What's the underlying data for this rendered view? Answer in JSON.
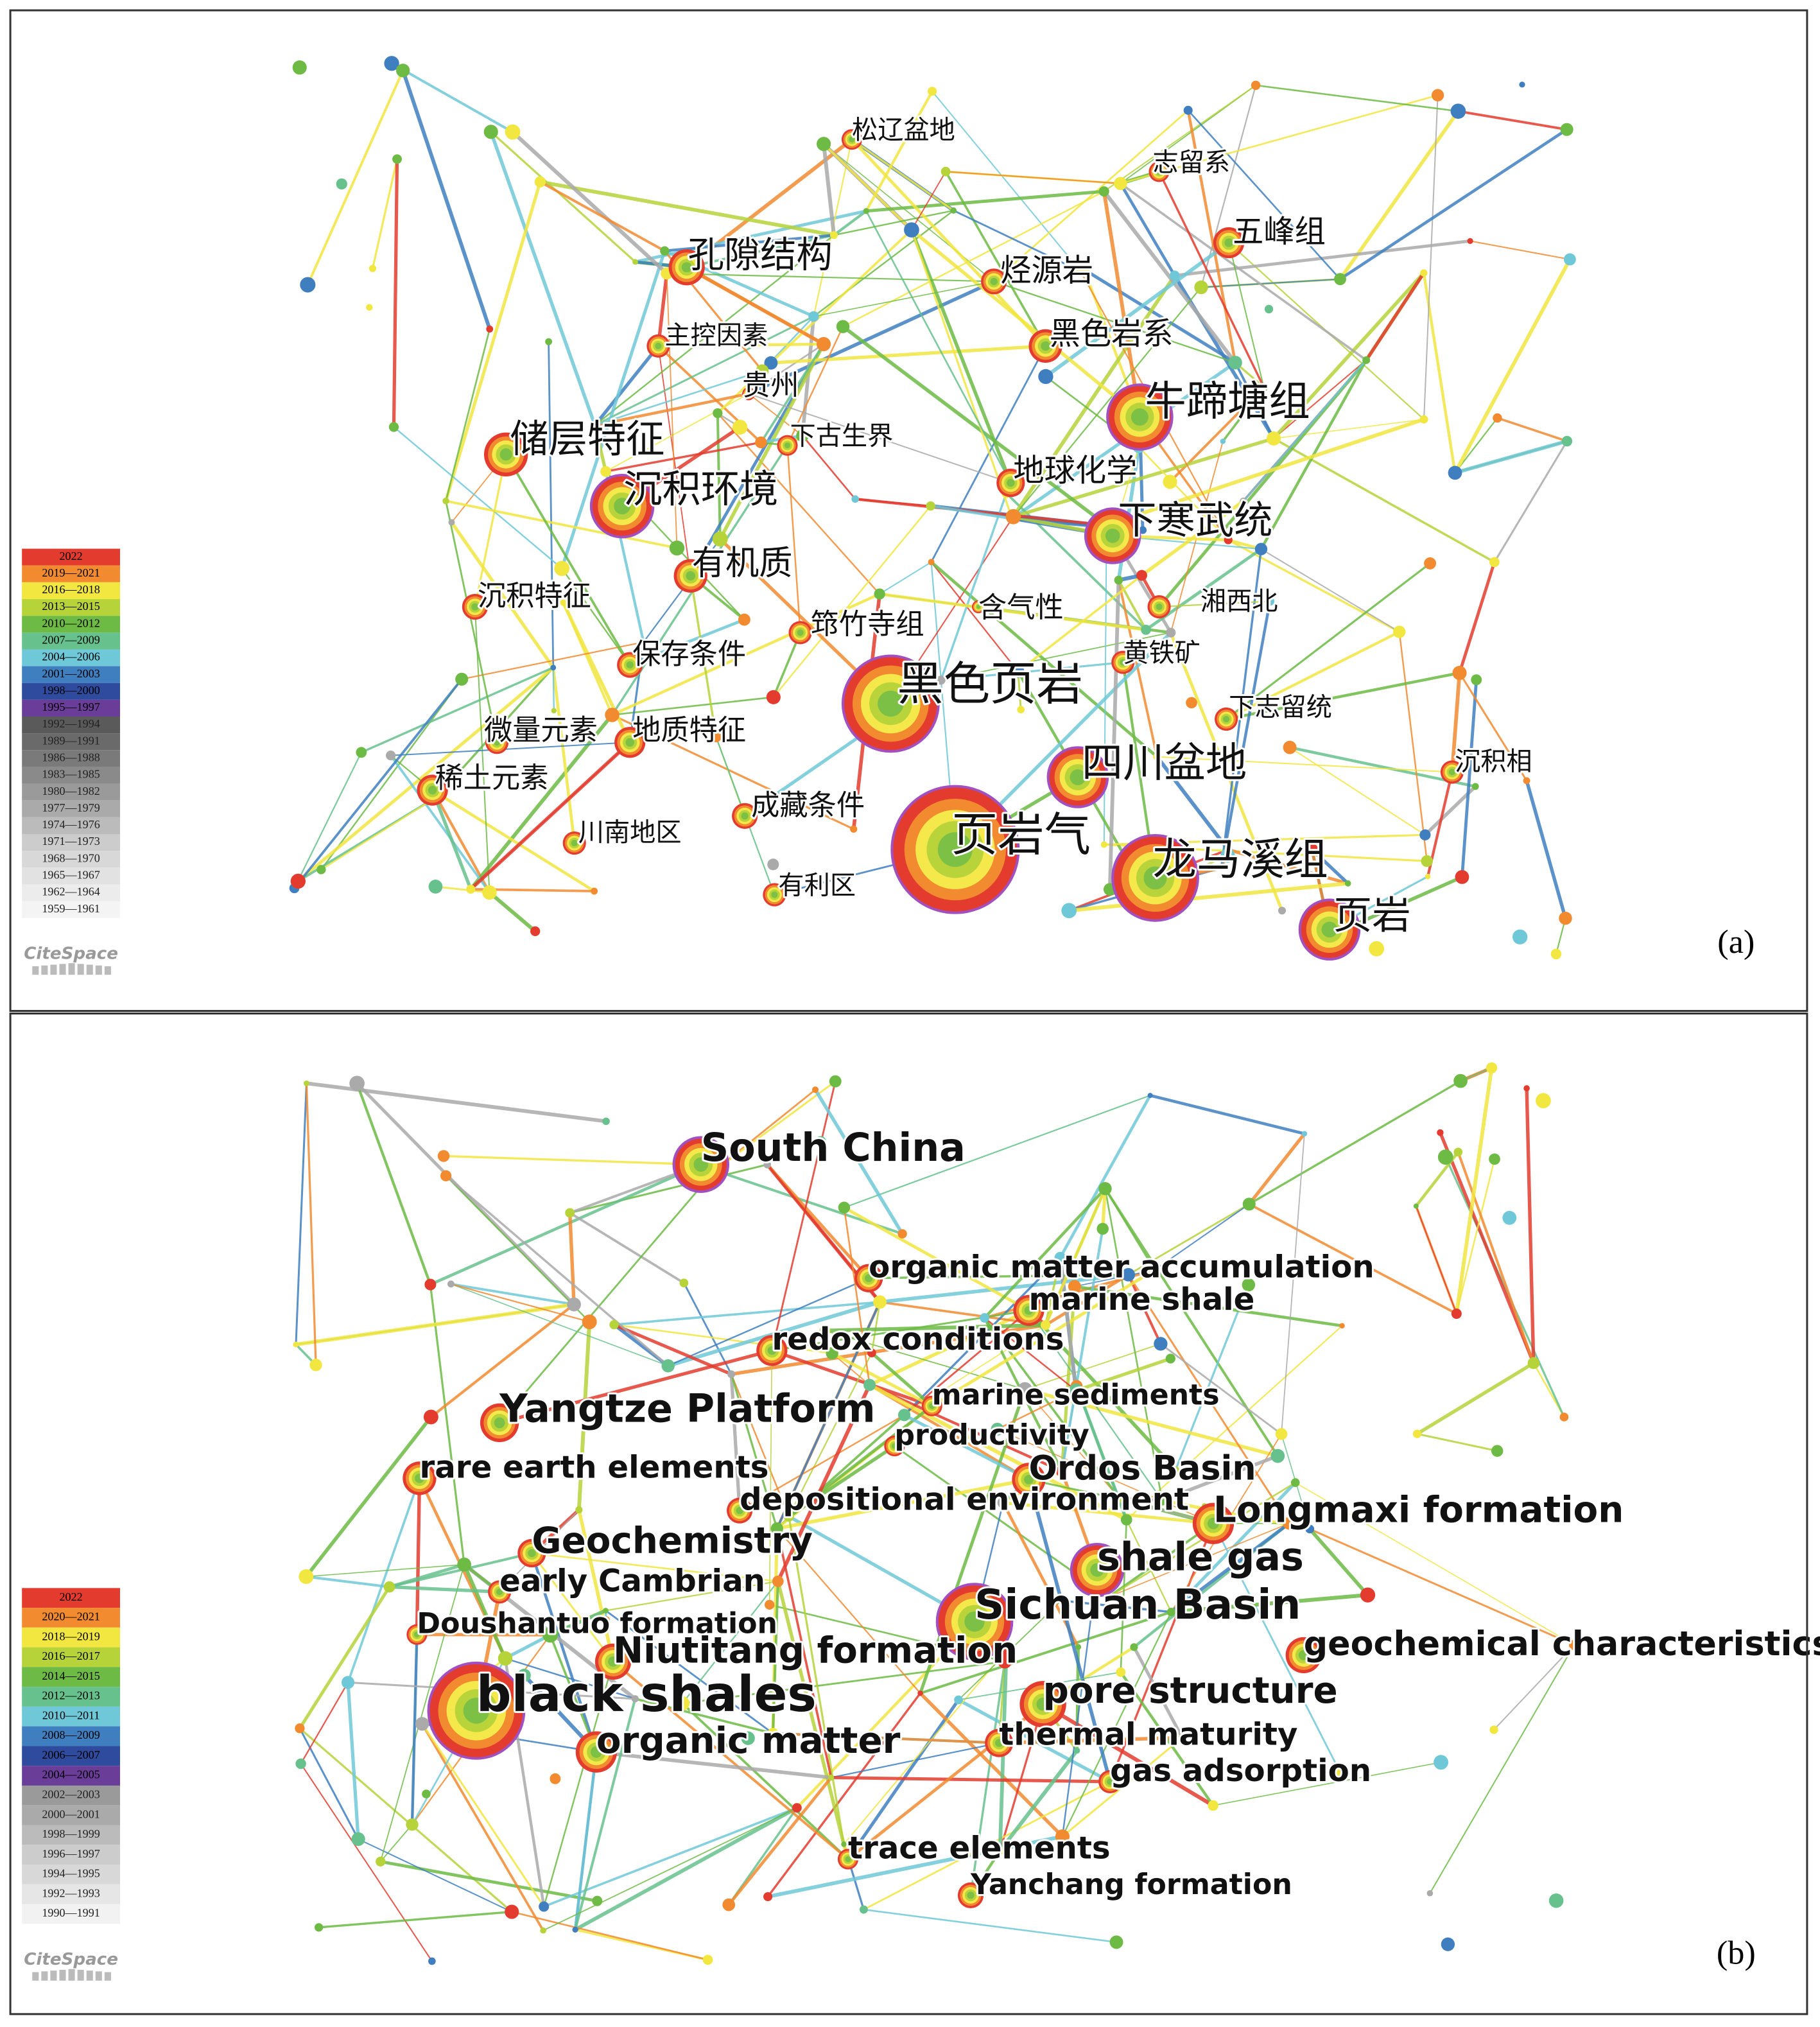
{
  "panel_a": {
    "label": "(a)",
    "logo": "CiteSpace",
    "legend": [
      "2022",
      "2019—2021",
      "2016—2018",
      "2013—2015",
      "2010—2012",
      "2007—2009",
      "2004—2006",
      "2001—2003",
      "1998—2000",
      "1995—1997",
      "1992—1994",
      "1989—1991",
      "1986—1988",
      "1983—1985",
      "1980—1982",
      "1977—1979",
      "1974—1976",
      "1971—1973",
      "1968—1970",
      "1965—1967",
      "1962—1964",
      "1959—1961"
    ],
    "nodes": [
      {
        "label": "松辽盆地"
      },
      {
        "label": "志留系"
      },
      {
        "label": "五峰组"
      },
      {
        "label": "孔隙结构"
      },
      {
        "label": "烃源岩"
      },
      {
        "label": "主控因素"
      },
      {
        "label": "黑色岩系"
      },
      {
        "label": "贵州"
      },
      {
        "label": "牛蹄塘组"
      },
      {
        "label": "储层特征"
      },
      {
        "label": "下古生界"
      },
      {
        "label": "地球化学"
      },
      {
        "label": "沉积环境"
      },
      {
        "label": "下寒武统"
      },
      {
        "label": "有机质"
      },
      {
        "label": "沉积特征"
      },
      {
        "label": "湘西北"
      },
      {
        "label": "含气性"
      },
      {
        "label": "筇竹寺组"
      },
      {
        "label": "黄铁矿"
      },
      {
        "label": "保存条件"
      },
      {
        "label": "黑色页岩"
      },
      {
        "label": "下志留统"
      },
      {
        "label": "微量元素"
      },
      {
        "label": "地质特征"
      },
      {
        "label": "四川盆地"
      },
      {
        "label": "沉积相"
      },
      {
        "label": "稀土元素"
      },
      {
        "label": "成藏条件"
      },
      {
        "label": "川南地区"
      },
      {
        "label": "页岩气"
      },
      {
        "label": "龙马溪组"
      },
      {
        "label": "有利区"
      },
      {
        "label": "页岩"
      }
    ]
  },
  "panel_b": {
    "label": "(b)",
    "logo": "CiteSpace",
    "legend": [
      "2022",
      "2020—2021",
      "2018—2019",
      "2016—2017",
      "2014—2015",
      "2012—2013",
      "2010—2011",
      "2008—2009",
      "2006—2007",
      "2004—2005",
      "2002—2003",
      "2000—2001",
      "1998—1999",
      "1996—1997",
      "1994—1995",
      "1992—1993",
      "1990—1991"
    ],
    "nodes": [
      {
        "label": "South China"
      },
      {
        "label": "organic matter accumulation"
      },
      {
        "label": "marine shale"
      },
      {
        "label": "redox conditions"
      },
      {
        "label": "marine sediments"
      },
      {
        "label": "Yangtze Platform"
      },
      {
        "label": "productivity"
      },
      {
        "label": "Ordos Basin"
      },
      {
        "label": "rare earth elements"
      },
      {
        "label": "depositional environment"
      },
      {
        "label": "Longmaxi formation"
      },
      {
        "label": "Geochemistry"
      },
      {
        "label": "shale gas"
      },
      {
        "label": "early Cambrian"
      },
      {
        "label": "Sichuan Basin"
      },
      {
        "label": "Doushantuo formation"
      },
      {
        "label": "geochemical characteristics"
      },
      {
        "label": "Niutitang formation"
      },
      {
        "label": "black shales"
      },
      {
        "label": "pore structure"
      },
      {
        "label": "organic matter"
      },
      {
        "label": "thermal maturity"
      },
      {
        "label": "gas adsorption"
      },
      {
        "label": "trace elements"
      },
      {
        "label": "Yanchang formation"
      }
    ]
  }
}
